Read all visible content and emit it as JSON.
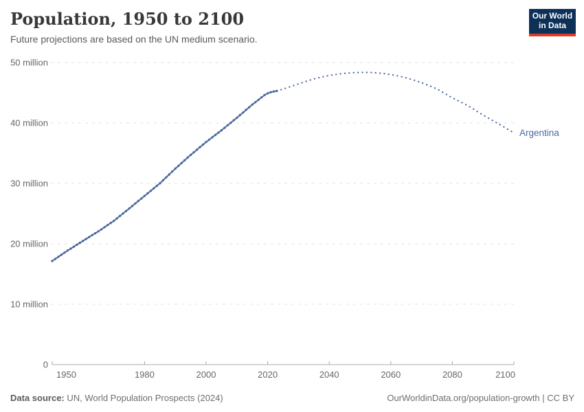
{
  "header": {
    "title": "Population, 1950 to 2100",
    "subtitle": "Future projections are based on the UN medium scenario."
  },
  "logo": {
    "line1": "Our World",
    "line2": "in Data"
  },
  "footer": {
    "source_label": "Data source:",
    "source_text": " UN, World Population Prospects (2024)",
    "credit": "OurWorldinData.org/population-growth | CC BY"
  },
  "colors": {
    "series_blue": "#4C6A9C",
    "gridline": "#e0e0e0",
    "axis": "#a8a8a8",
    "tick_label": "#666666",
    "logo_navy": "#0d3059",
    "logo_red": "#dc3a2b"
  },
  "chart_data": {
    "type": "line",
    "title": "Population, 1950 to 2100",
    "entity": "Argentina",
    "unit": "million",
    "xlabel": "",
    "ylabel": "",
    "xlim": [
      1950,
      2100
    ],
    "ylim": [
      0,
      50
    ],
    "x_ticks": [
      1950,
      1980,
      2000,
      2020,
      2040,
      2060,
      2080,
      2100
    ],
    "y_ticks": [
      0,
      10,
      20,
      30,
      40,
      50
    ],
    "y_tick_suffix": " million",
    "grid": true,
    "legend_position": "end-of-line-label",
    "series": [
      {
        "name": "Argentina (estimates)",
        "style": "solid",
        "x_start": 1950,
        "x_step": 1,
        "values": [
          17.15,
          17.49,
          17.84,
          18.18,
          18.53,
          18.87,
          19.19,
          19.51,
          19.84,
          20.16,
          20.48,
          20.8,
          21.11,
          21.43,
          21.74,
          22.06,
          22.4,
          22.75,
          23.09,
          23.44,
          23.78,
          24.19,
          24.6,
          25.01,
          25.42,
          25.83,
          26.25,
          26.67,
          27.09,
          27.5,
          27.92,
          28.34,
          28.76,
          29.17,
          29.59,
          30.01,
          30.5,
          30.98,
          31.47,
          31.95,
          32.44,
          32.89,
          33.35,
          33.8,
          34.26,
          34.71,
          35.14,
          35.56,
          35.99,
          36.41,
          36.84,
          37.23,
          37.62,
          38.0,
          38.39,
          38.78,
          39.19,
          39.61,
          40.02,
          40.44,
          40.85,
          41.29,
          41.72,
          42.16,
          42.59,
          43.03,
          43.43,
          43.82,
          44.22,
          44.61,
          44.9,
          45.08,
          45.2,
          45.3
        ]
      },
      {
        "name": "Argentina (UN medium projection)",
        "style": "dotted",
        "x": [
          2023,
          2025,
          2030,
          2035,
          2040,
          2045,
          2050,
          2055,
          2060,
          2065,
          2070,
          2075,
          2080,
          2085,
          2090,
          2095,
          2100
        ],
        "values": [
          45.3,
          45.6,
          46.45,
          47.27,
          47.85,
          48.2,
          48.35,
          48.3,
          48.0,
          47.45,
          46.65,
          45.6,
          44.15,
          42.85,
          41.3,
          39.85,
          38.35
        ]
      }
    ]
  }
}
